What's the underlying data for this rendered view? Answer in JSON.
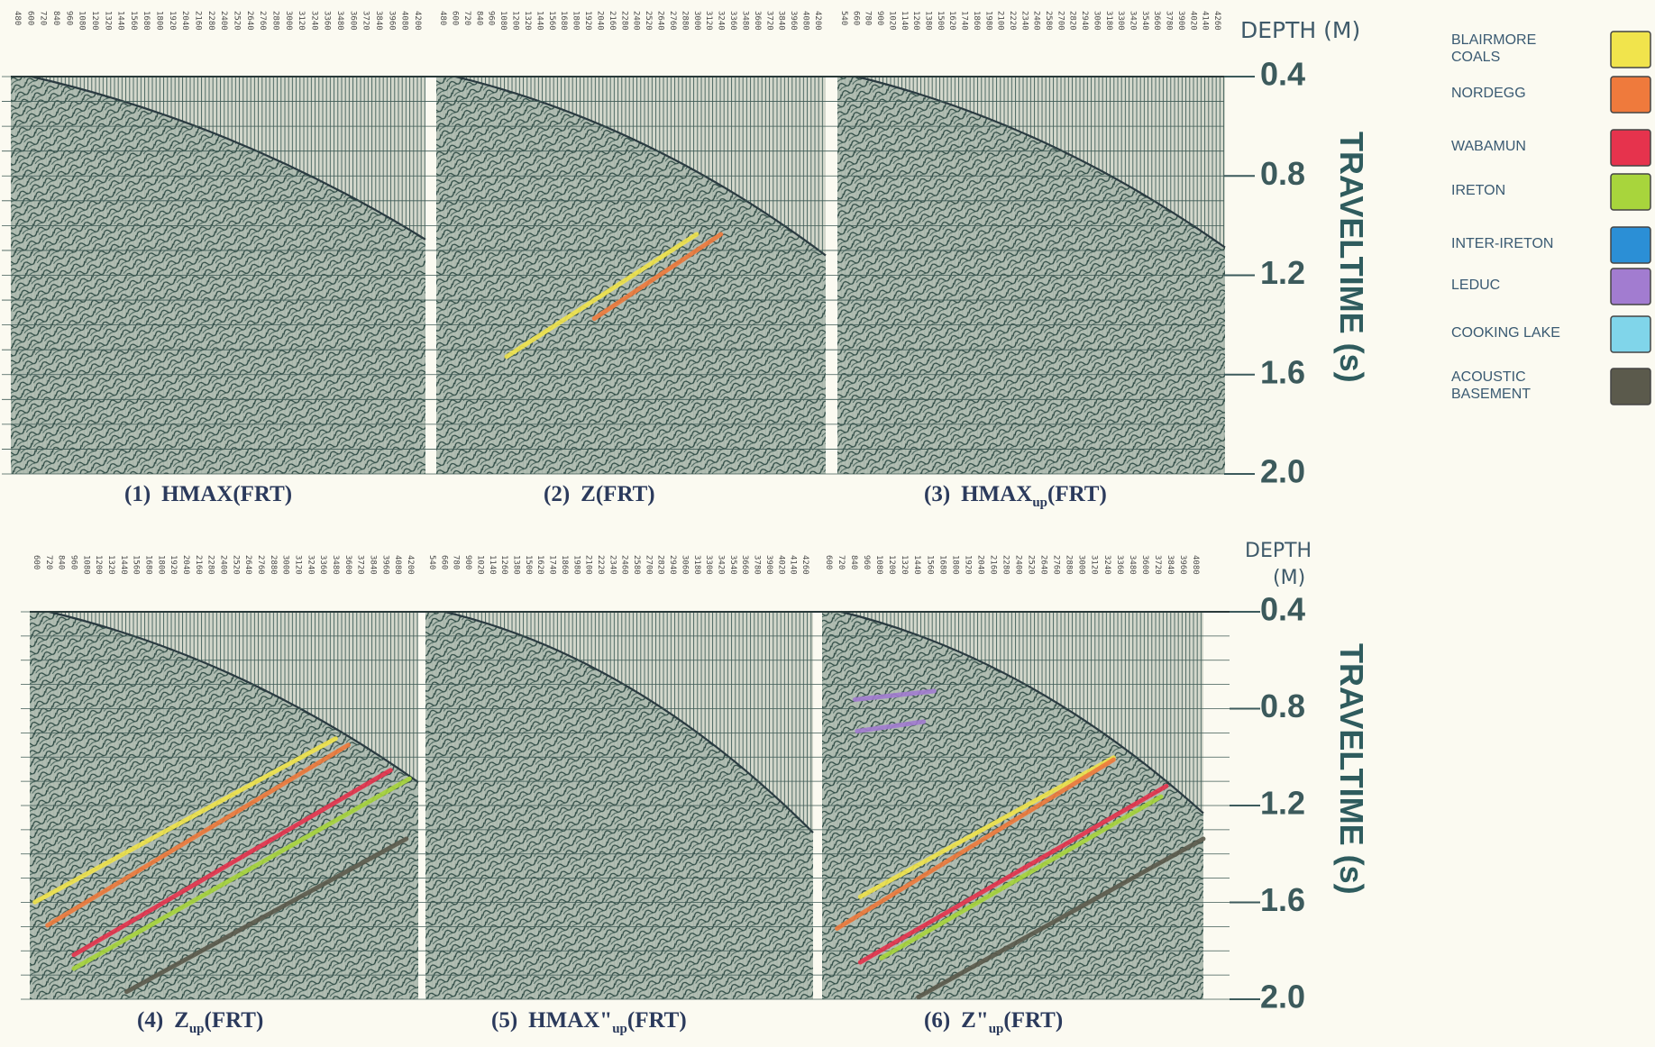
{
  "top": {
    "depth_header": "DEPTH (M)",
    "axis_title": "TRAVELTIME (s)",
    "time_ticks": [
      0.4,
      0.8,
      1.2,
      1.6,
      {
        "value": 2,
        "label": "2.0"
      }
    ],
    "panels": [
      {
        "depths": [
          480,
          600,
          720,
          840,
          960,
          1080,
          1200,
          1320,
          1440,
          1560,
          1680,
          1800,
          1920,
          2040,
          2160,
          2280,
          2400,
          2520,
          2640,
          2760,
          2880,
          3000,
          3120,
          3240,
          3360,
          3480,
          3600,
          3720,
          3840,
          3960,
          4080,
          4200
        ],
        "caption": {
          "number": "(1)",
          "name": "HMAX",
          "suffix": "(FRT)"
        }
      },
      {
        "depths": [
          480,
          600,
          720,
          840,
          960,
          1080,
          1200,
          1320,
          1440,
          1560,
          1680,
          1800,
          1920,
          2040,
          2160,
          2280,
          2400,
          2520,
          2640,
          2760,
          2880,
          3000,
          3120,
          3240,
          3360,
          3480,
          3600,
          3720,
          3840,
          3960,
          4080,
          4200
        ],
        "caption": {
          "number": "(2)",
          "name": "Z",
          "suffix": "(FRT)"
        }
      },
      {
        "depths": [
          540,
          660,
          780,
          900,
          1020,
          1140,
          1260,
          1380,
          1500,
          1620,
          1740,
          1860,
          1980,
          2100,
          2220,
          2340,
          2460,
          2580,
          2700,
          2820,
          2940,
          3060,
          3180,
          3300,
          3420,
          3540,
          3660,
          3780,
          3900,
          4020,
          4140,
          4260
        ],
        "caption": {
          "number": "(3)",
          "name": "HMAX",
          "sub": "up",
          "suffix": "(FRT)"
        }
      }
    ]
  },
  "bottom": {
    "depth_header": [
      "DEPTH",
      "(M)"
    ],
    "axis_title": "TRAVELTIME (s)",
    "time_ticks": [
      0.4,
      0.8,
      1.2,
      1.6,
      {
        "value": 2,
        "label": "2.0"
      }
    ],
    "panels": [
      {
        "depths": [
          600,
          720,
          840,
          960,
          1080,
          1200,
          1320,
          1440,
          1560,
          1680,
          1800,
          1920,
          2040,
          2160,
          2280,
          2400,
          2520,
          2640,
          2760,
          2880,
          3000,
          3120,
          3240,
          3360,
          3480,
          3600,
          3720,
          3840,
          3960,
          4080,
          4200
        ],
        "caption": {
          "number": "(4)",
          "name": "Z",
          "sub": "up",
          "suffix": "(FRT)"
        }
      },
      {
        "depths": [
          540,
          660,
          780,
          900,
          1020,
          1140,
          1260,
          1380,
          1500,
          1620,
          1740,
          1860,
          1980,
          2100,
          2220,
          2340,
          2460,
          2580,
          2700,
          2820,
          2940,
          3060,
          3180,
          3300,
          3420,
          3540,
          3660,
          3780,
          3900,
          4020,
          4140,
          4260
        ],
        "caption": {
          "number": "(5)",
          "name": "HMAX\"",
          "sub": "up",
          "suffix": "(FRT)"
        }
      },
      {
        "depths": [
          600,
          720,
          840,
          960,
          1080,
          1200,
          1320,
          1440,
          1560,
          1680,
          1800,
          1920,
          2040,
          2160,
          2280,
          2400,
          2520,
          2640,
          2760,
          2880,
          3000,
          3120,
          3240,
          3360,
          3480,
          3600,
          3720,
          3840,
          3960,
          4080
        ],
        "caption": {
          "number": "(6)",
          "name": "Z\"",
          "sub": "up",
          "suffix": "(FRT)"
        }
      }
    ]
  },
  "legend": [
    {
      "label": [
        "BLAIRMORE",
        "COALS"
      ],
      "color": "#f1e44c"
    },
    {
      "label": [
        "NORDEGG"
      ],
      "color": "#ef7a3c"
    },
    {
      "label": [
        "WABAMUN"
      ],
      "color": "#e6334d"
    },
    {
      "label": [
        "IRETON"
      ],
      "color": "#a8d53c"
    },
    {
      "label": [
        "INTER-IRETON"
      ],
      "color": "#2b8fd6"
    },
    {
      "label": [
        "LEDUC"
      ],
      "color": "#a27cd0"
    },
    {
      "label": [
        "COOKING LAKE"
      ],
      "color": "#80d5ea"
    },
    {
      "label": [
        "ACOUSTIC",
        "BASEMENT"
      ],
      "color": "#5b5a4c"
    }
  ]
}
